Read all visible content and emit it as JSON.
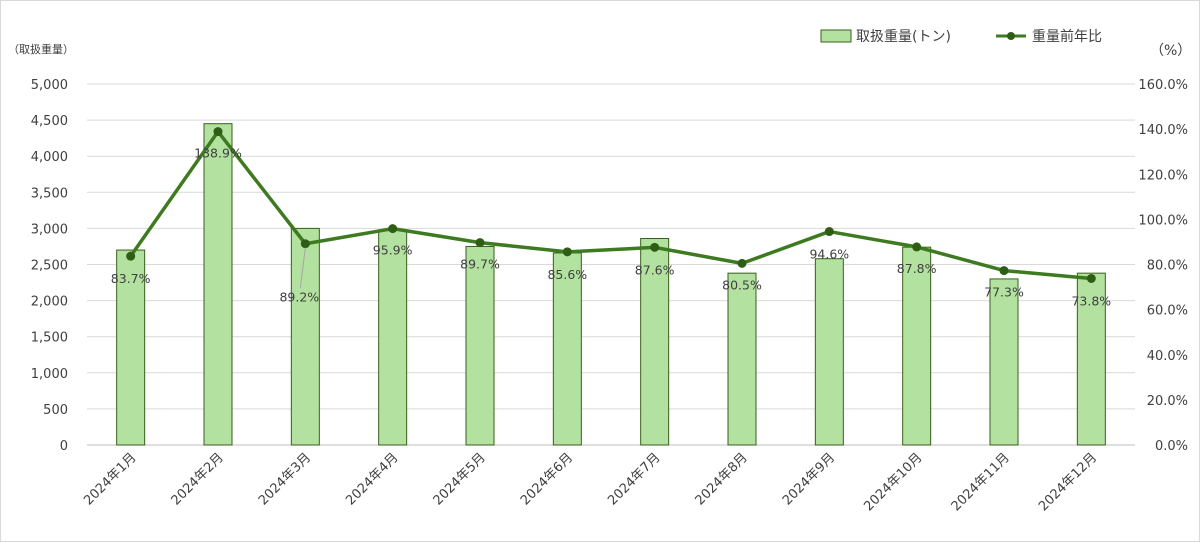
{
  "chart_data": {
    "type": "bar",
    "categories": [
      "2024年1月",
      "2024年2月",
      "2024年3月",
      "2024年4月",
      "2024年5月",
      "2024年6月",
      "2024年7月",
      "2024年8月",
      "2024年9月",
      "2024年10月",
      "2024年11月",
      "2024年12月"
    ],
    "series": [
      {
        "name": "取扱重量(トン)",
        "type": "bar",
        "axis": "left",
        "color": "#b3e2a0",
        "edge_color": "#375f1b",
        "values": [
          2700,
          4450,
          3000,
          2980,
          2750,
          2660,
          2860,
          2380,
          2580,
          2740,
          2300,
          2380
        ]
      },
      {
        "name": "重量前年比",
        "type": "line",
        "axis": "right",
        "color": "#3d7a20",
        "values": [
          83.7,
          138.9,
          89.2,
          95.9,
          89.7,
          85.6,
          87.6,
          80.5,
          94.6,
          87.8,
          77.3,
          73.8
        ],
        "labels": [
          "83.7%",
          "138.9%",
          "89.2%",
          "95.9%",
          "89.7%",
          "85.6%",
          "87.6%",
          "80.5%",
          "94.6%",
          "87.8%",
          "77.3%",
          "73.8%"
        ]
      }
    ],
    "ylabel_left": "（取扱重量）",
    "ylabel_right": "（%）",
    "ylim_left": [
      0,
      5000
    ],
    "yticks_left": [
      "0",
      "500",
      "1,000",
      "1,500",
      "2,000",
      "2,500",
      "3,000",
      "3,500",
      "4,000",
      "4,500",
      "5,000"
    ],
    "ylim_right": [
      0,
      160
    ],
    "yticks_right": [
      "0.0%",
      "20.0%",
      "40.0%",
      "60.0%",
      "80.0%",
      "100.0%",
      "120.0%",
      "140.0%",
      "160.0%"
    ],
    "grid": true,
    "legend_position": "top-right"
  }
}
